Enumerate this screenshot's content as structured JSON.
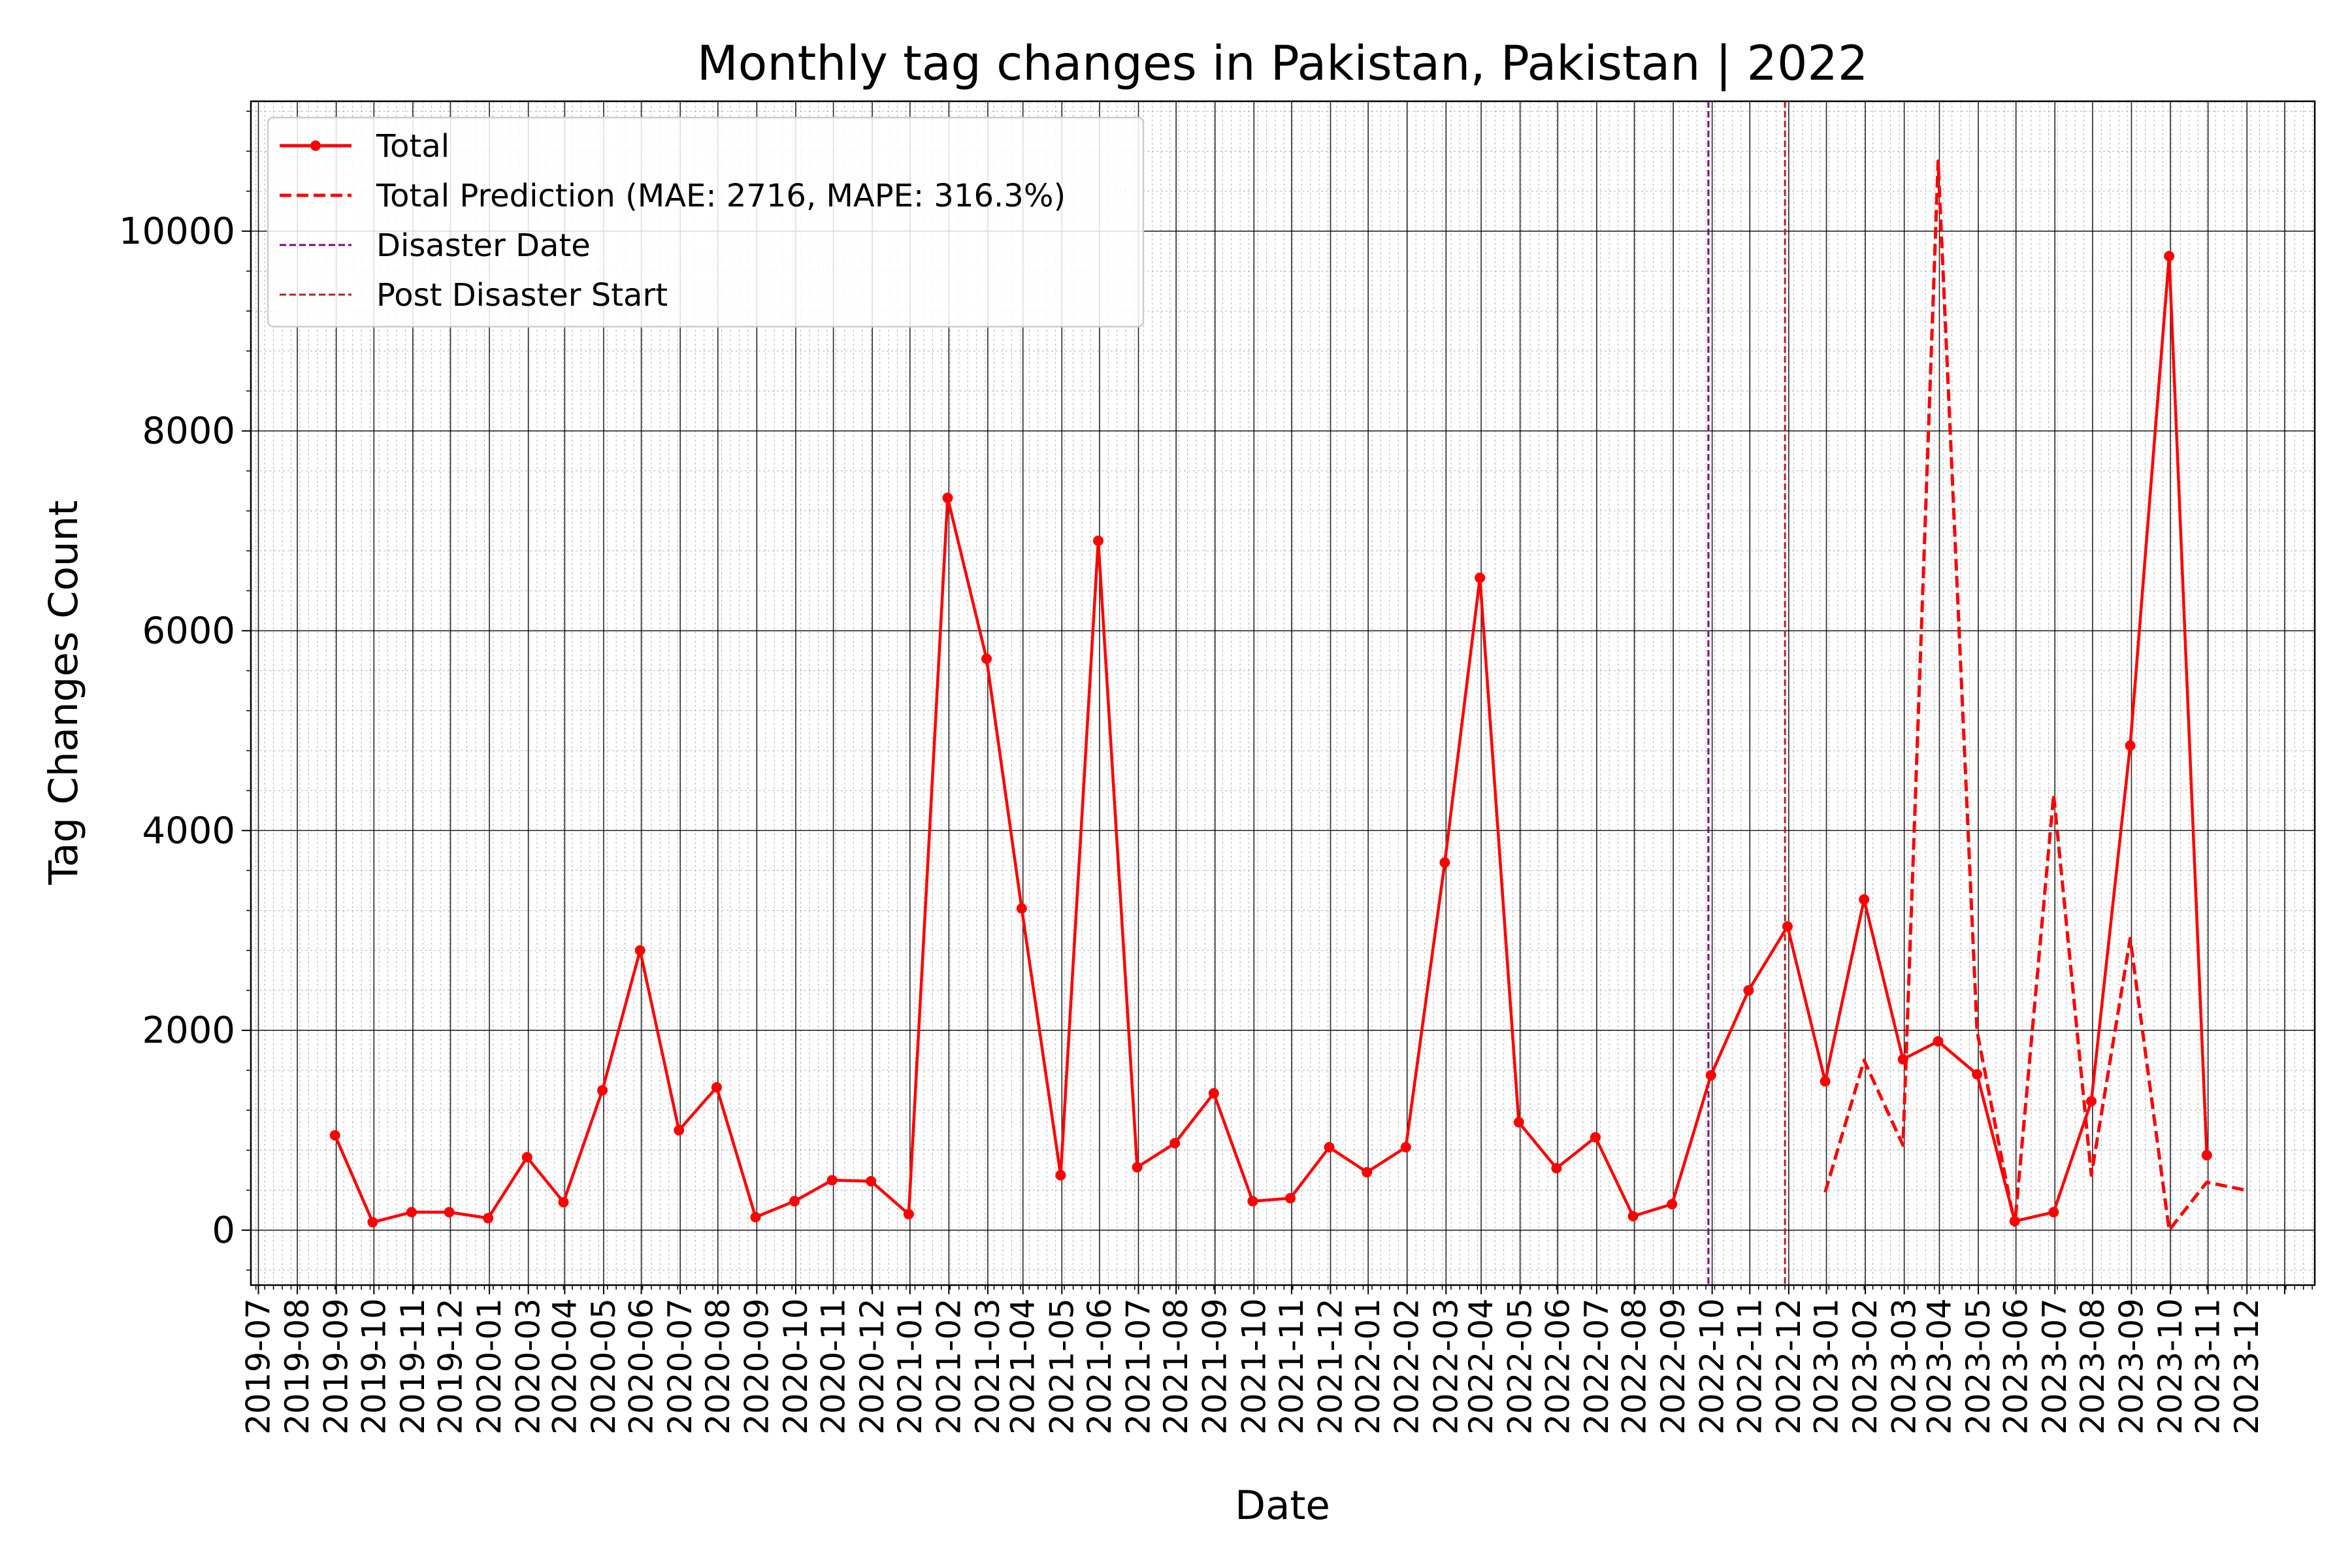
{
  "chart_data": {
    "type": "line",
    "title": "Monthly tag changes in Pakistan, Pakistan | 2022",
    "xlabel": "Date",
    "ylabel": "Tag Changes Count",
    "xlim": [
      "2019-06-25",
      "2023-12-25"
    ],
    "ylim": [
      -550,
      11300
    ],
    "x_tick_labels": [
      "2019-07",
      "2019-08",
      "2019-09",
      "2019-10",
      "2019-11",
      "2019-12",
      "2020-01",
      "2020-03",
      "2020-04",
      "2020-05",
      "2020-06",
      "2020-07",
      "2020-08",
      "2020-09",
      "2020-10",
      "2020-11",
      "2020-12",
      "2021-01",
      "2021-02",
      "2021-03",
      "2021-04",
      "2021-05",
      "2021-06",
      "2021-07",
      "2021-08",
      "2021-09",
      "2021-10",
      "2021-11",
      "2021-12",
      "2022-01",
      "2022-02",
      "2022-03",
      "2022-04",
      "2022-05",
      "2022-06",
      "2022-07",
      "2022-08",
      "2022-09",
      "2022-10",
      "2022-11",
      "2022-12",
      "2023-01",
      "2023-02",
      "2023-03",
      "2023-04",
      "2023-05",
      "2023-06",
      "2023-07",
      "2023-08",
      "2023-09",
      "2023-10",
      "2023-11",
      "2023-12"
    ],
    "y_ticks": [
      0,
      2000,
      4000,
      6000,
      8000,
      10000
    ],
    "grid": true,
    "legend_position": "top-left",
    "series": [
      {
        "name": "Total",
        "color": "#ff0000",
        "style": "solid-markers",
        "points": [
          [
            "2019-08-31",
            950
          ],
          [
            "2019-09-30",
            80
          ],
          [
            "2019-10-31",
            180
          ],
          [
            "2019-11-30",
            180
          ],
          [
            "2019-12-31",
            120
          ],
          [
            "2020-01-31",
            730
          ],
          [
            "2020-02-29",
            280
          ],
          [
            "2020-03-31",
            1400
          ],
          [
            "2020-04-30",
            2800
          ],
          [
            "2020-05-31",
            1000
          ],
          [
            "2020-06-30",
            1430
          ],
          [
            "2020-07-31",
            130
          ],
          [
            "2020-08-31",
            290
          ],
          [
            "2020-09-30",
            500
          ],
          [
            "2020-10-31",
            490
          ],
          [
            "2020-11-30",
            160
          ],
          [
            "2020-12-31",
            7330
          ],
          [
            "2021-01-31",
            5720
          ],
          [
            "2021-02-28",
            3220
          ],
          [
            "2021-03-31",
            550
          ],
          [
            "2021-04-30",
            6900
          ],
          [
            "2021-05-31",
            630
          ],
          [
            "2021-06-30",
            870
          ],
          [
            "2021-07-31",
            1370
          ],
          [
            "2021-08-31",
            290
          ],
          [
            "2021-09-30",
            320
          ],
          [
            "2021-10-31",
            830
          ],
          [
            "2021-11-30",
            580
          ],
          [
            "2021-12-31",
            830
          ],
          [
            "2022-01-31",
            3680
          ],
          [
            "2022-02-28",
            6530
          ],
          [
            "2022-03-31",
            1080
          ],
          [
            "2022-04-30",
            620
          ],
          [
            "2022-05-31",
            930
          ],
          [
            "2022-06-30",
            140
          ],
          [
            "2022-07-31",
            260
          ],
          [
            "2022-08-31",
            1550
          ],
          [
            "2022-09-30",
            2400
          ],
          [
            "2022-10-31",
            3040
          ],
          [
            "2022-11-30",
            1490
          ],
          [
            "2022-12-31",
            3310
          ],
          [
            "2023-01-31",
            1710
          ],
          [
            "2023-02-28",
            1890
          ],
          [
            "2023-03-31",
            1560
          ],
          [
            "2023-04-30",
            90
          ],
          [
            "2023-05-31",
            180
          ],
          [
            "2023-06-30",
            1290
          ],
          [
            "2023-07-31",
            4850
          ],
          [
            "2023-08-31",
            9750
          ],
          [
            "2023-09-30",
            750
          ]
        ]
      },
      {
        "name": "Total Prediction (MAE: 2716, MAPE: 316.3%)",
        "color": "#ff0000",
        "style": "dashed",
        "points": [
          [
            "2022-11-30",
            380
          ],
          [
            "2022-12-31",
            1700
          ],
          [
            "2023-01-31",
            850
          ],
          [
            "2023-02-28",
            10700
          ],
          [
            "2023-03-31",
            1990
          ],
          [
            "2023-04-30",
            50
          ],
          [
            "2023-05-31",
            4360
          ],
          [
            "2023-06-30",
            550
          ],
          [
            "2023-07-31",
            2920
          ],
          [
            "2023-08-31",
            0
          ],
          [
            "2023-09-30",
            480
          ],
          [
            "2023-10-31",
            400
          ]
        ]
      }
    ],
    "vertical_lines": [
      {
        "name": "Disaster Date",
        "x": "2022-08-29",
        "color": "#800080"
      },
      {
        "name": "Post Disaster Start",
        "x": "2022-10-29",
        "color": "#b22222"
      }
    ]
  }
}
